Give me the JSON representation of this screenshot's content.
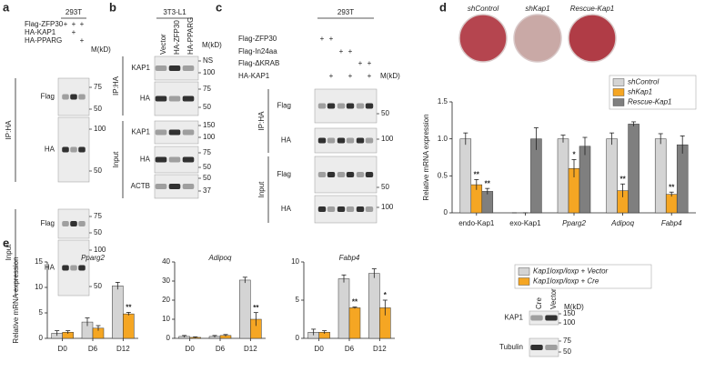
{
  "blot_a": {
    "label": "a",
    "cell_line": "293T",
    "unit": "M(kD)",
    "rows": [
      {
        "name": "Flag-ZFP30",
        "marks": [
          "+",
          "+",
          "+"
        ]
      },
      {
        "name": "HA-KAP1",
        "marks": [
          null,
          "+",
          null
        ]
      },
      {
        "name": "HA-PPARG",
        "marks": [
          null,
          null,
          "+"
        ]
      }
    ],
    "groups": [
      {
        "name": "IP:HA",
        "blots": [
          {
            "name": "Flag",
            "markers": [
              75,
              50
            ]
          },
          {
            "name": "HA",
            "markers": [
              100,
              50
            ]
          }
        ]
      },
      {
        "name": "Input",
        "blots": [
          {
            "name": "Flag",
            "markers": [
              75,
              50
            ]
          },
          {
            "name": "HA",
            "markers": [
              100,
              50
            ]
          }
        ]
      }
    ]
  },
  "blot_b": {
    "label": "b",
    "cell_line": "3T3-L1",
    "unit": "M(kD)",
    "lanes": [
      "Vector",
      "HA-ZFP30",
      "HA-PPARG"
    ],
    "groups": [
      {
        "name": "IP:HA",
        "blots": [
          {
            "name": "KAP1",
            "markers": [
              "NS",
              100
            ]
          },
          {
            "name": "HA",
            "markers": [
              75,
              50
            ]
          }
        ]
      },
      {
        "name": "Input",
        "blots": [
          {
            "name": "KAP1",
            "markers": [
              150,
              100
            ]
          },
          {
            "name": "HA",
            "markers": [
              75,
              50
            ]
          },
          {
            "name": "ACTB",
            "markers": [
              50,
              37
            ]
          }
        ]
      }
    ]
  },
  "blot_c": {
    "label": "c",
    "cell_line": "293T",
    "unit": "M(kD)",
    "rows": [
      {
        "name": "Flag-ZFP30",
        "marks": [
          "+",
          "+",
          null,
          null,
          null,
          null
        ]
      },
      {
        "name": "Flag-In24aa",
        "marks": [
          null,
          null,
          "+",
          "+",
          null,
          null
        ]
      },
      {
        "name": "Flag-ΔKRAB",
        "marks": [
          null,
          null,
          null,
          null,
          "+",
          "+"
        ]
      },
      {
        "name": "HA-KAP1",
        "marks": [
          null,
          "+",
          null,
          "+",
          null,
          "+"
        ]
      }
    ],
    "groups": [
      {
        "name": "IP:HA",
        "blots": [
          {
            "name": "Flag",
            "markers": [
              50
            ]
          },
          {
            "name": "HA",
            "markers": [
              100
            ]
          }
        ]
      },
      {
        "name": "Input",
        "blots": [
          {
            "name": "Flag",
            "markers": [
              50
            ]
          },
          {
            "name": "HA",
            "markers": [
              100
            ]
          }
        ]
      }
    ]
  },
  "plates_d": {
    "label": "d",
    "plates": [
      "shControl",
      "shKap1",
      "Rescue-Kap1"
    ]
  },
  "blot_e": {
    "unit": "M(kD)",
    "lanes": [
      "Cre",
      "Vector"
    ],
    "blots": [
      {
        "name": "KAP1",
        "markers": [
          150,
          100
        ]
      },
      {
        "name": "Tubulin",
        "markers": [
          75,
          50
        ]
      }
    ]
  },
  "chart_data": [
    {
      "type": "bar",
      "ylabel": "Relative mRNA expression",
      "categories": [
        "endo-Kap1",
        "exo-Kap1",
        "Pparg2",
        "Adipoq",
        "Fabp4"
      ],
      "ylim": [
        0,
        1.5
      ],
      "yticks": [
        0,
        0.5,
        {
          "value": 1,
          "label": "1.0"
        },
        1.5
      ],
      "series": [
        {
          "name": "shControl",
          "color": "#d4d4d4",
          "values": [
            1.0,
            0,
            1.0,
            1.0,
            1.0
          ],
          "errors": [
            0.08,
            0,
            0.05,
            0.08,
            0.07
          ],
          "significance": [
            null,
            null,
            null,
            null,
            null
          ]
        },
        {
          "name": "shKap1",
          "color": "#f5a623",
          "values": [
            0.38,
            0,
            0.6,
            0.3,
            0.25
          ],
          "errors": [
            0.07,
            0,
            0.12,
            0.09,
            0.03
          ],
          "significance": [
            "**",
            null,
            "*",
            "**",
            "**"
          ]
        },
        {
          "name": "Rescue-Kap1",
          "color": "#7f7f7f",
          "values": [
            0.29,
            1.0,
            0.9,
            1.2,
            0.92
          ],
          "errors": [
            0.04,
            0.15,
            0.12,
            0.03,
            0.12
          ],
          "significance": [
            "**",
            null,
            null,
            null,
            null
          ]
        }
      ]
    },
    {
      "type": "bar",
      "label": "e",
      "title": "Pparg2",
      "ylabel": "Relative mRNA expression",
      "categories": [
        "D0",
        "D6",
        "D12"
      ],
      "ylim": [
        0,
        15
      ],
      "yticks": [
        0,
        5,
        10,
        15
      ],
      "series": [
        {
          "name": "Kap1loxp/loxp + Vector",
          "color": "#d4d4d4",
          "values": [
            1.0,
            3.2,
            10.3
          ],
          "errors": [
            0.5,
            0.8,
            0.7
          ],
          "significance": [
            null,
            null,
            null
          ]
        },
        {
          "name": "Kap1loxp/loxp + Cre",
          "color": "#f5a623",
          "values": [
            1.2,
            2.0,
            4.8
          ],
          "errors": [
            0.3,
            0.5,
            0.3
          ],
          "significance": [
            null,
            null,
            "**"
          ]
        }
      ]
    },
    {
      "type": "bar",
      "title": "Adipoq",
      "categories": [
        "D0",
        "D6",
        "D12"
      ],
      "ylim": [
        0,
        40
      ],
      "yticks": [
        0,
        10,
        20,
        30,
        40
      ],
      "series": [
        {
          "color": "#d4d4d4",
          "values": [
            1.0,
            1.0,
            30.5
          ],
          "errors": [
            0.5,
            0.5,
            1.5
          ],
          "significance": [
            null,
            null,
            null
          ]
        },
        {
          "color": "#f5a623",
          "values": [
            0.5,
            1.5,
            10
          ],
          "errors": [
            0.3,
            0.5,
            3.5
          ],
          "significance": [
            null,
            null,
            "**"
          ]
        }
      ]
    },
    {
      "type": "bar",
      "title": "Fabp4",
      "categories": [
        "D0",
        "D6",
        "D12"
      ],
      "ylim": [
        0,
        10
      ],
      "yticks": [
        0,
        5,
        10
      ],
      "series": [
        {
          "color": "#d4d4d4",
          "values": [
            0.8,
            7.8,
            8.5
          ],
          "errors": [
            0.4,
            0.5,
            0.6
          ],
          "significance": [
            null,
            null,
            null
          ]
        },
        {
          "color": "#f5a623",
          "values": [
            0.8,
            4.0,
            4.0
          ],
          "errors": [
            0.2,
            0.1,
            1.0
          ],
          "significance": [
            null,
            "**",
            "*"
          ]
        }
      ]
    }
  ]
}
